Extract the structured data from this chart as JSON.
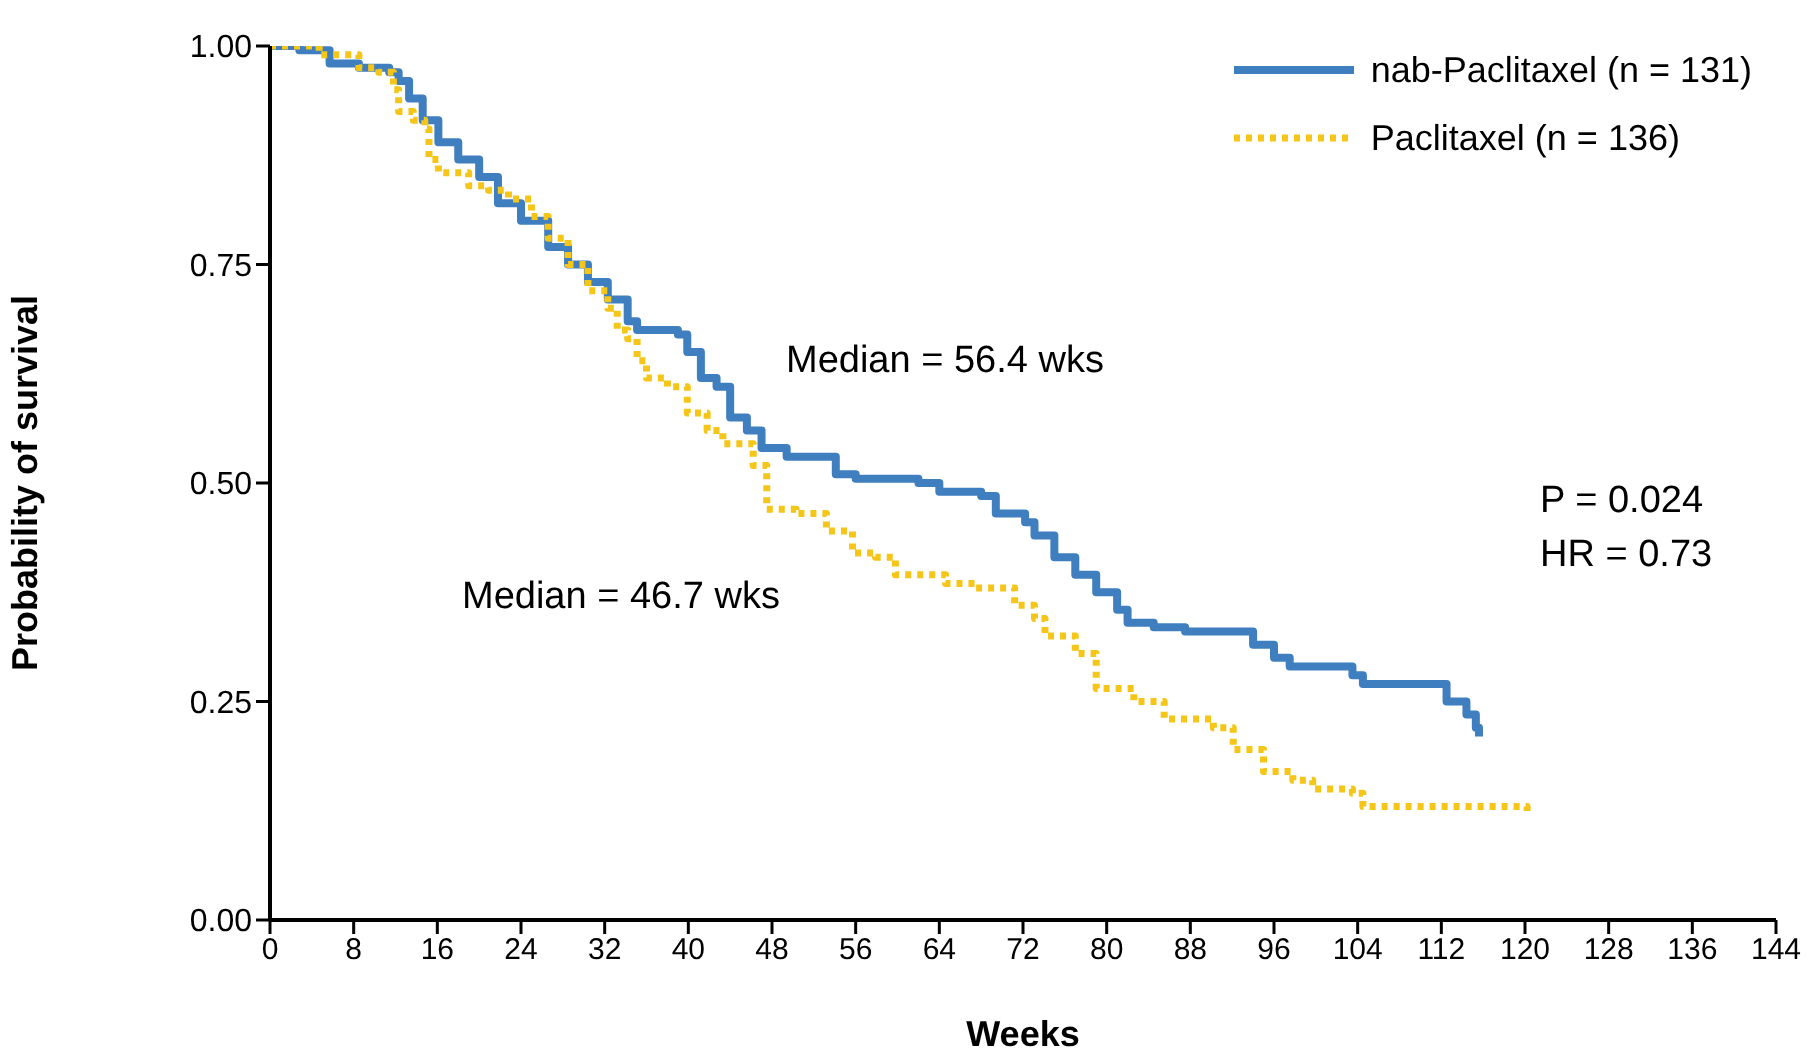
{
  "chart_data": {
    "type": "step",
    "xlabel": "Weeks",
    "ylabel": "Probability of survival",
    "xlim": [
      0,
      144
    ],
    "xticks": [
      0,
      8,
      16,
      24,
      32,
      40,
      48,
      56,
      64,
      72,
      80,
      88,
      96,
      104,
      112,
      120,
      128,
      136,
      144
    ],
    "ylim": [
      0,
      1
    ],
    "yticks": [
      {
        "value": 0,
        "label": "0.00"
      },
      {
        "value": 0.25,
        "label": "0.25"
      },
      {
        "value": 0.5,
        "label": "0.50"
      },
      {
        "value": 0.75,
        "label": "0.75"
      },
      {
        "value": 1,
        "label": "1.00"
      }
    ],
    "legend": "top right",
    "marker": "none",
    "annotations": [
      "Median = 56.4 wks",
      "Median = 46.7 wks",
      "P = 0.024",
      "HR = 0.73"
    ],
    "series": [
      {
        "name": "nab-Paclitaxel (n = 131)",
        "color": "#3f7fbf",
        "line_style": "solid",
        "x": [
          0,
          2.8,
          5.7,
          8.5,
          11.4,
          12.3,
          13.3,
          14.6,
          16.1,
          18,
          20,
          21.8,
          24,
          26.6,
          28.5,
          30.4,
          32.3,
          34.2,
          35.1,
          39,
          39.9,
          41.2,
          42.7,
          44,
          45.6,
          47,
          49.4,
          53.2,
          54.1,
          56,
          62,
          64,
          68,
          69.4,
          72.2,
          73.1,
          75,
          77,
          79,
          81,
          82,
          84.5,
          87.5,
          93,
          94,
          96,
          97.5,
          103.5,
          104.5,
          111.5,
          112.5,
          114.4,
          115.3,
          115.6
        ],
        "values": [
          1,
          0.995,
          0.98,
          0.975,
          0.97,
          0.96,
          0.94,
          0.915,
          0.89,
          0.87,
          0.85,
          0.82,
          0.8,
          0.77,
          0.75,
          0.73,
          0.71,
          0.685,
          0.675,
          0.67,
          0.65,
          0.62,
          0.61,
          0.575,
          0.56,
          0.54,
          0.53,
          0.53,
          0.51,
          0.505,
          0.5,
          0.49,
          0.485,
          0.465,
          0.455,
          0.44,
          0.415,
          0.395,
          0.375,
          0.355,
          0.34,
          0.335,
          0.33,
          0.33,
          0.315,
          0.3,
          0.29,
          0.28,
          0.27,
          0.27,
          0.25,
          0.235,
          0.22,
          0.21
        ]
      },
      {
        "name": "Paclitaxel (n = 136)",
        "color": "#f5c518",
        "line_style": "dotted",
        "x": [
          0,
          4.7,
          8.5,
          10.4,
          11.8,
          12.3,
          13.7,
          14.8,
          15.2,
          16.1,
          19,
          20.9,
          22.8,
          25,
          26.6,
          28.5,
          30.4,
          32.3,
          33.2,
          34.2,
          35.1,
          36,
          38,
          39.9,
          41.8,
          43.3,
          45.2,
          46.2,
          47.5,
          50.3,
          53.2,
          55.7,
          57.9,
          59.8,
          64.6,
          67.4,
          71.2,
          73.1,
          74.1,
          77,
          79,
          82.6,
          85.5,
          88,
          90.2,
          92.1,
          95,
          97.8,
          99.7,
          103.5,
          104.5,
          107.3,
          119.9,
          120.2
        ],
        "values": [
          1,
          0.99,
          0.975,
          0.97,
          0.95,
          0.925,
          0.915,
          0.905,
          0.87,
          0.855,
          0.84,
          0.835,
          0.825,
          0.805,
          0.78,
          0.75,
          0.72,
          0.7,
          0.675,
          0.665,
          0.64,
          0.62,
          0.61,
          0.58,
          0.56,
          0.545,
          0.545,
          0.52,
          0.47,
          0.465,
          0.445,
          0.42,
          0.415,
          0.395,
          0.385,
          0.38,
          0.36,
          0.345,
          0.325,
          0.305,
          0.265,
          0.25,
          0.23,
          0.23,
          0.22,
          0.195,
          0.17,
          0.16,
          0.15,
          0.145,
          0.13,
          0.13,
          0.13,
          0.12
        ]
      }
    ]
  }
}
